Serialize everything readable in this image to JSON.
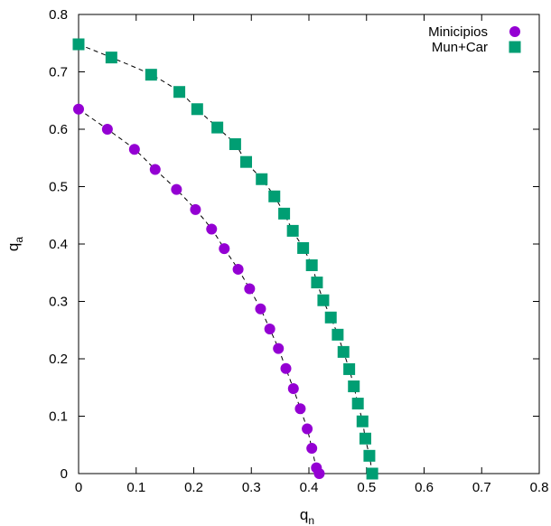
{
  "chart_data": {
    "type": "scatter",
    "xlabel": "q",
    "xlabel_sub": "n",
    "ylabel": "q",
    "ylabel_sub": "a",
    "xlim": [
      0,
      0.8
    ],
    "ylim": [
      0,
      0.8
    ],
    "xticks": [
      "0",
      "0.1",
      "0.2",
      "0.3",
      "0.4",
      "0.5",
      "0.6",
      "0.7",
      "0.8"
    ],
    "yticks": [
      "0",
      "0.1",
      "0.2",
      "0.3",
      "0.4",
      "0.5",
      "0.6",
      "0.7",
      "0.8"
    ],
    "grid": false,
    "legend_position": "top-right",
    "fit_line_style": "dashed",
    "series": [
      {
        "name": "Minicipios",
        "marker": "circle",
        "color": "#9400d3",
        "points": [
          [
            0.0,
            0.635
          ],
          [
            0.05,
            0.6
          ],
          [
            0.097,
            0.565
          ],
          [
            0.133,
            0.53
          ],
          [
            0.17,
            0.495
          ],
          [
            0.203,
            0.46
          ],
          [
            0.231,
            0.426
          ],
          [
            0.253,
            0.392
          ],
          [
            0.277,
            0.356
          ],
          [
            0.297,
            0.322
          ],
          [
            0.316,
            0.287
          ],
          [
            0.332,
            0.252
          ],
          [
            0.347,
            0.218
          ],
          [
            0.36,
            0.183
          ],
          [
            0.373,
            0.148
          ],
          [
            0.385,
            0.113
          ],
          [
            0.397,
            0.078
          ],
          [
            0.405,
            0.044
          ],
          [
            0.413,
            0.01
          ],
          [
            0.418,
            0.0
          ]
        ]
      },
      {
        "name": "Mun+Car",
        "marker": "square",
        "color": "#009e73",
        "points": [
          [
            0.0,
            0.748
          ],
          [
            0.057,
            0.725
          ],
          [
            0.126,
            0.695
          ],
          [
            0.175,
            0.665
          ],
          [
            0.206,
            0.635
          ],
          [
            0.241,
            0.603
          ],
          [
            0.272,
            0.574
          ],
          [
            0.291,
            0.543
          ],
          [
            0.318,
            0.513
          ],
          [
            0.34,
            0.483
          ],
          [
            0.357,
            0.453
          ],
          [
            0.372,
            0.423
          ],
          [
            0.39,
            0.393
          ],
          [
            0.405,
            0.363
          ],
          [
            0.414,
            0.333
          ],
          [
            0.425,
            0.302
          ],
          [
            0.438,
            0.272
          ],
          [
            0.45,
            0.242
          ],
          [
            0.46,
            0.212
          ],
          [
            0.47,
            0.182
          ],
          [
            0.478,
            0.152
          ],
          [
            0.485,
            0.122
          ],
          [
            0.493,
            0.091
          ],
          [
            0.498,
            0.061
          ],
          [
            0.505,
            0.031
          ],
          [
            0.51,
            0.0
          ]
        ]
      }
    ]
  }
}
